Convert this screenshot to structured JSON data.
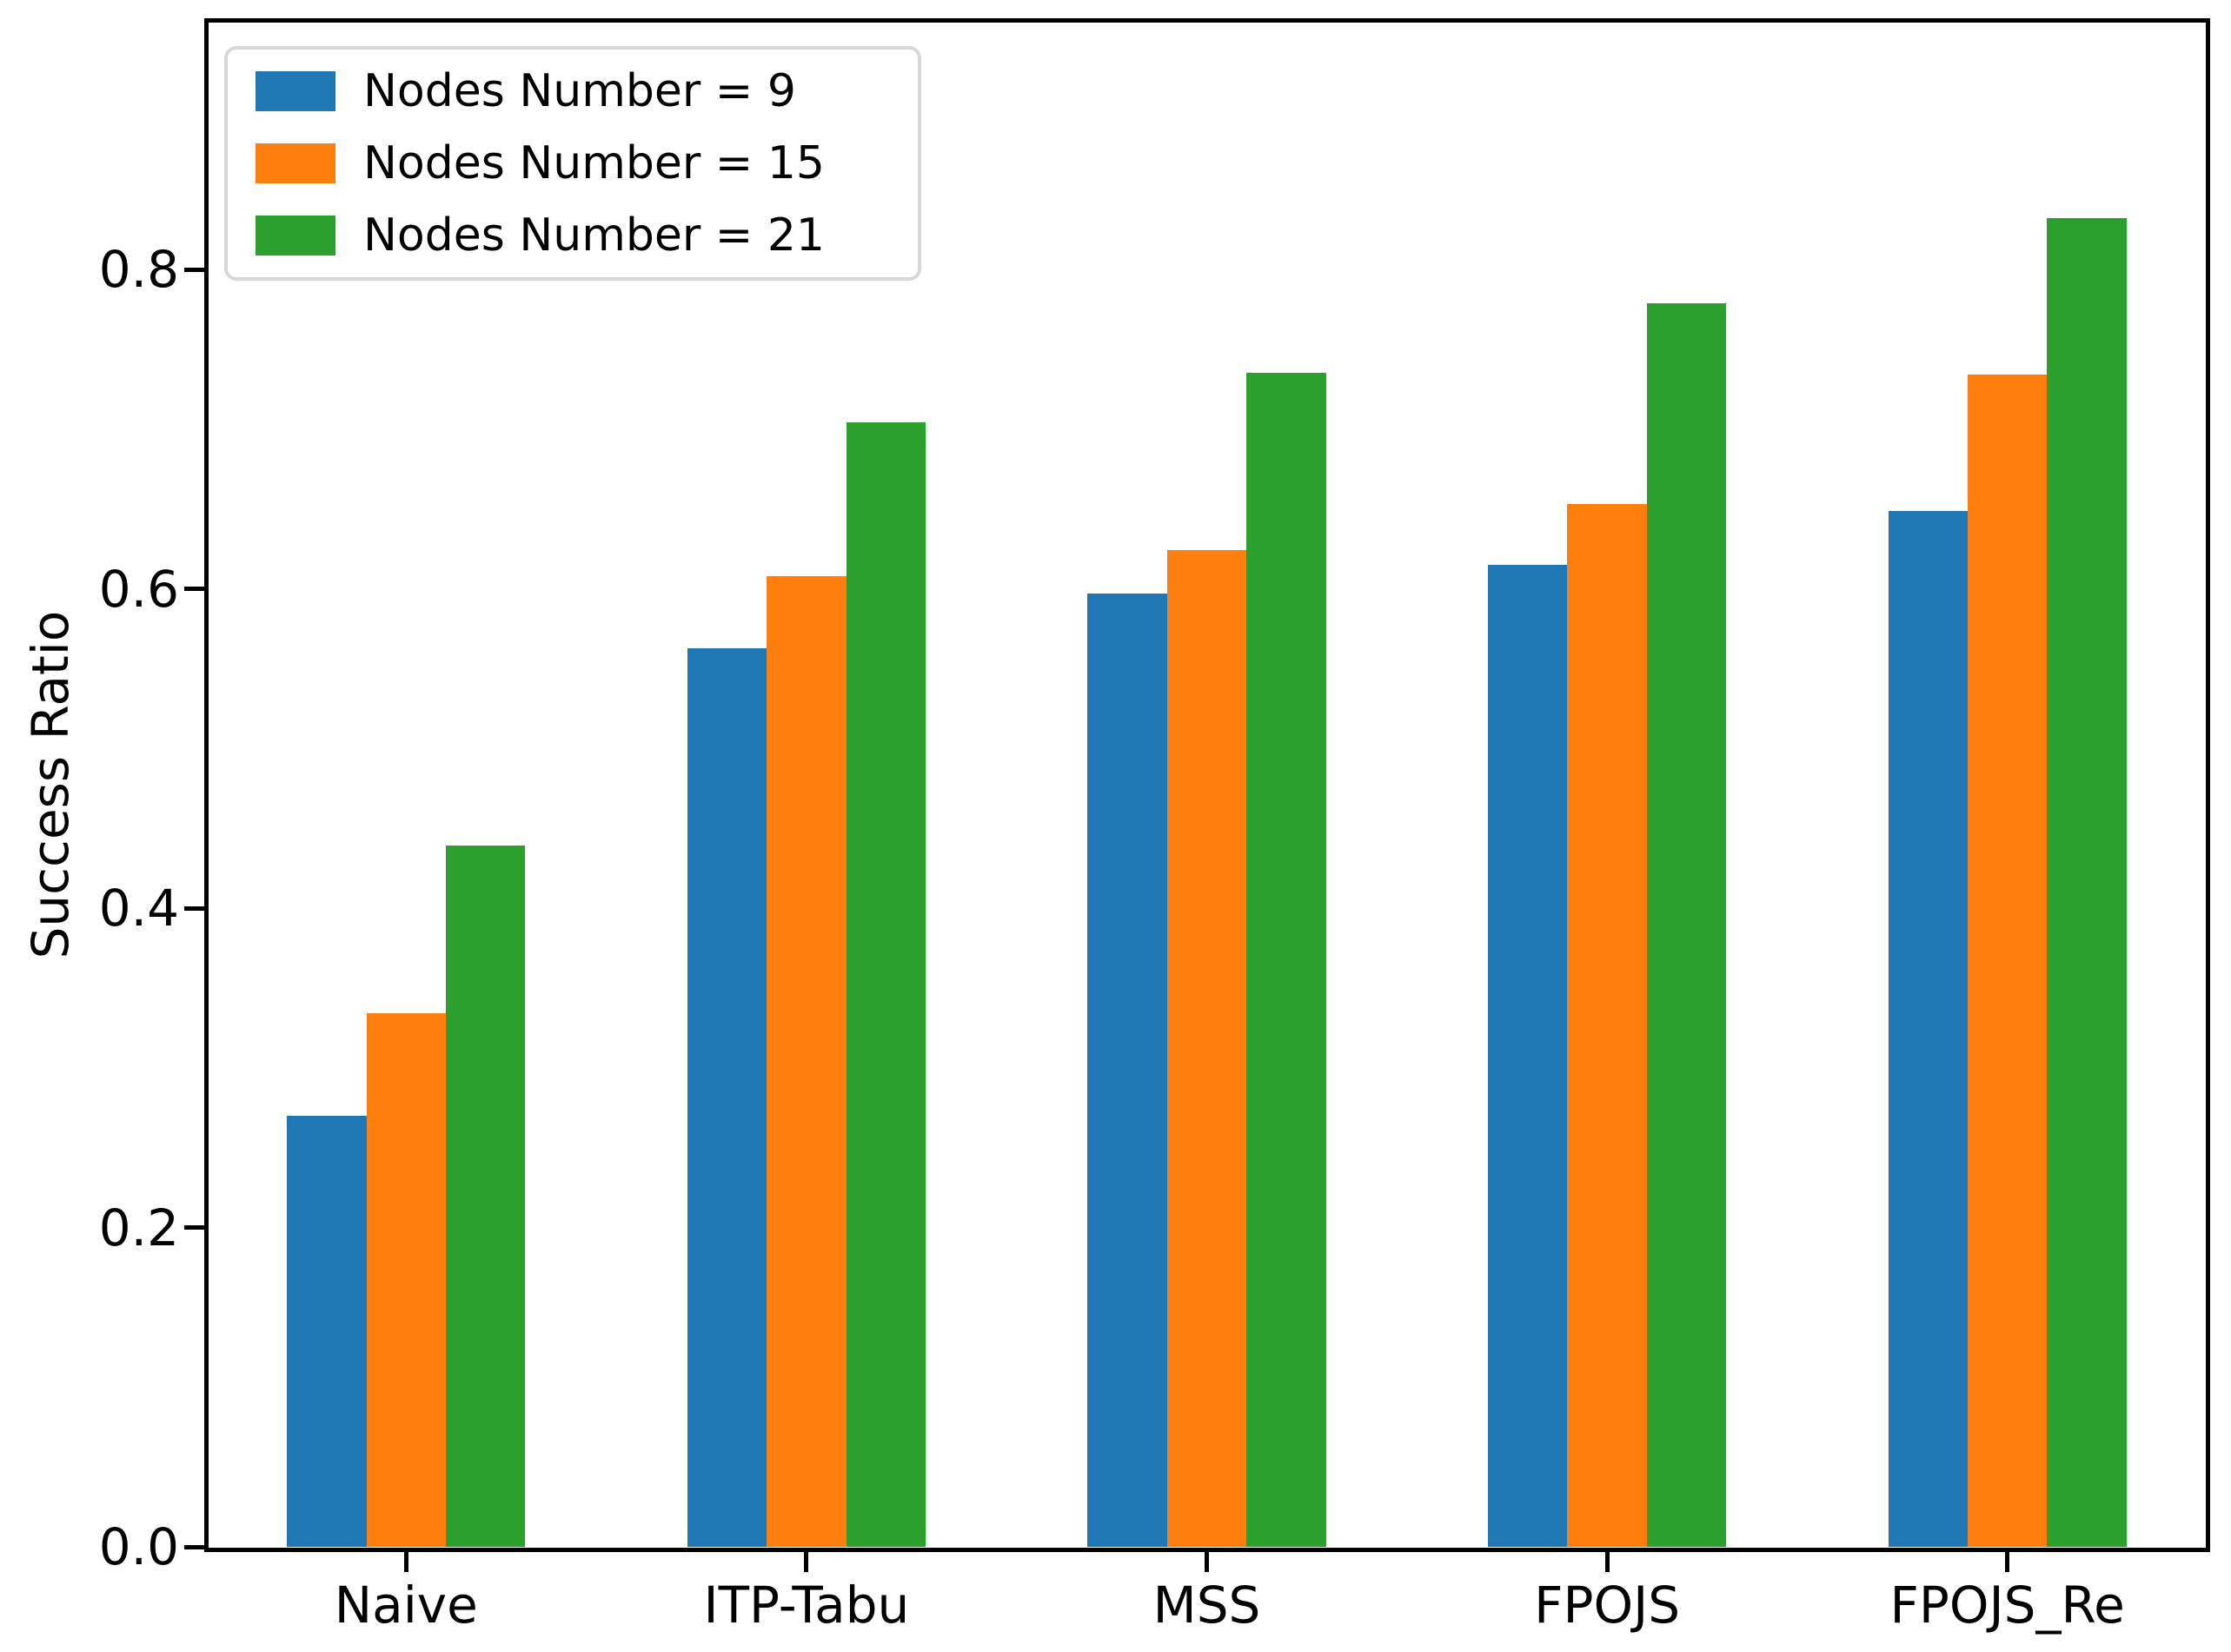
{
  "chart_data": {
    "type": "bar",
    "title": "",
    "xlabel": "",
    "ylabel": "Success Ratio",
    "categories": [
      "Naive",
      "ITP-Tabu",
      "MSS",
      "FPOJS",
      "FPOJS_Re"
    ],
    "series": [
      {
        "name": "Nodes Number = 9",
        "color": "#1f77b4",
        "values": [
          0.27,
          0.563,
          0.597,
          0.615,
          0.649
        ]
      },
      {
        "name": "Nodes Number = 15",
        "color": "#ff7f0e",
        "values": [
          0.334,
          0.608,
          0.624,
          0.653,
          0.734
        ]
      },
      {
        "name": "Nodes Number = 21",
        "color": "#2ca02c",
        "values": [
          0.439,
          0.704,
          0.735,
          0.779,
          0.832
        ]
      }
    ],
    "yticks": [
      0.0,
      0.2,
      0.4,
      0.6,
      0.8
    ],
    "ytick_labels": [
      "0.0",
      "0.2",
      "0.4",
      "0.6",
      "0.8"
    ],
    "ylim": [
      0,
      0.958
    ],
    "grid": false,
    "legend": {
      "position": "upper left",
      "entries": [
        "Nodes Number = 9",
        "Nodes Number = 15",
        "Nodes Number = 21"
      ]
    },
    "colors": {
      "axis": "#000000",
      "background": "#ffffff",
      "legend_border": "#d8d8d8"
    }
  }
}
